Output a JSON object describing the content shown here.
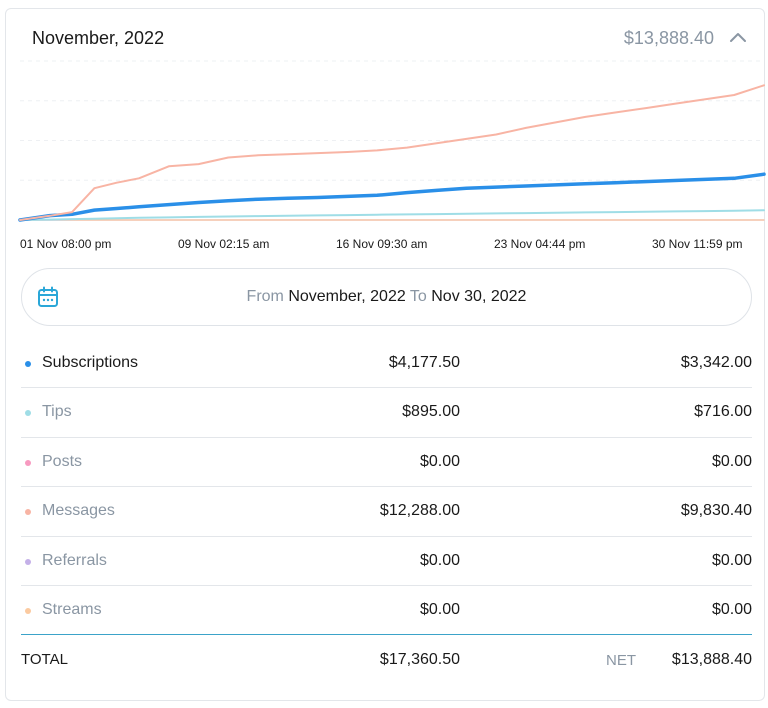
{
  "header": {
    "title": "November, 2022",
    "total": "$13,888.40"
  },
  "chart_data": {
    "type": "line",
    "title": "",
    "x_ticks": [
      "01 Nov 08:00 pm",
      "09 Nov 02:15 am",
      "16 Nov 09:30 am",
      "23 Nov 04:44 pm",
      "30 Nov 11:59 pm"
    ],
    "ylim": [
      0,
      14500
    ],
    "grid": true,
    "legend": "none",
    "x": [
      0,
      0.04,
      0.07,
      0.1,
      0.13,
      0.16,
      0.2,
      0.24,
      0.28,
      0.32,
      0.36,
      0.4,
      0.44,
      0.48,
      0.52,
      0.56,
      0.6,
      0.64,
      0.68,
      0.72,
      0.76,
      0.8,
      0.84,
      0.88,
      0.92,
      0.96,
      1.0
    ],
    "series": [
      {
        "name": "Messages",
        "color": "#f8b4a4",
        "values": [
          0,
          380,
          720,
          2900,
          3400,
          3800,
          4900,
          5100,
          5700,
          5900,
          6000,
          6100,
          6200,
          6350,
          6600,
          7000,
          7400,
          7800,
          8400,
          8900,
          9400,
          9800,
          10200,
          10600,
          11000,
          11400,
          12288
        ]
      },
      {
        "name": "Subscriptions",
        "color": "#2a8fe8",
        "values": [
          0,
          400,
          520,
          900,
          1050,
          1200,
          1400,
          1600,
          1750,
          1900,
          1980,
          2050,
          2150,
          2250,
          2500,
          2700,
          2900,
          3000,
          3100,
          3200,
          3300,
          3400,
          3500,
          3600,
          3700,
          3800,
          4177.5
        ]
      },
      {
        "name": "Tips",
        "color": "#9fdde6",
        "values": [
          0,
          40,
          80,
          120,
          160,
          200,
          240,
          280,
          320,
          360,
          390,
          420,
          450,
          480,
          510,
          540,
          570,
          600,
          630,
          660,
          690,
          720,
          750,
          780,
          810,
          850,
          895
        ]
      },
      {
        "name": "Posts",
        "color": "#f79ac0",
        "values": [
          0,
          0,
          0,
          0,
          0,
          0,
          0,
          0,
          0,
          0,
          0,
          0,
          0,
          0,
          0,
          0,
          0,
          0,
          0,
          0,
          0,
          0,
          0,
          0,
          0,
          0,
          0
        ]
      },
      {
        "name": "Referrals",
        "color": "#c4b0e8",
        "values": [
          0,
          0,
          0,
          0,
          0,
          0,
          0,
          0,
          0,
          0,
          0,
          0,
          0,
          0,
          0,
          0,
          0,
          0,
          0,
          0,
          0,
          0,
          0,
          0,
          0,
          0,
          0
        ]
      },
      {
        "name": "Streams",
        "color": "#fbcaa0",
        "values": [
          0,
          0,
          0,
          0,
          0,
          0,
          0,
          0,
          0,
          0,
          0,
          0,
          0,
          0,
          0,
          0,
          0,
          0,
          0,
          0,
          0,
          0,
          0,
          0,
          0,
          0,
          0
        ]
      }
    ]
  },
  "range": {
    "from_label": "From",
    "from_value": "November, 2022",
    "to_label": "To",
    "to_value": "Nov 30, 2022"
  },
  "rows": [
    {
      "label": "Subscriptions",
      "gross": "$4,177.50",
      "net": "$3,342.00",
      "color": "#2a8fe8"
    },
    {
      "label": "Tips",
      "gross": "$895.00",
      "net": "$716.00",
      "color": "#9fdde6"
    },
    {
      "label": "Posts",
      "gross": "$0.00",
      "net": "$0.00",
      "color": "#f79ac0"
    },
    {
      "label": "Messages",
      "gross": "$12,288.00",
      "net": "$9,830.40",
      "color": "#f8b4a4"
    },
    {
      "label": "Referrals",
      "gross": "$0.00",
      "net": "$0.00",
      "color": "#c4b0e8"
    },
    {
      "label": "Streams",
      "gross": "$0.00",
      "net": "$0.00",
      "color": "#fbcaa0"
    }
  ],
  "totals": {
    "label": "TOTAL",
    "gross": "$17,360.50",
    "net_label": "NET",
    "net": "$13,888.40"
  }
}
